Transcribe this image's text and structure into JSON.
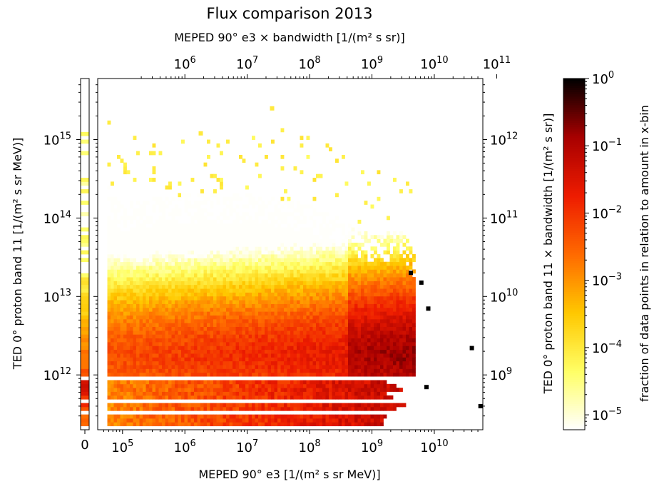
{
  "chart_data": {
    "type": "heatmap",
    "title": "Flux comparison 2013",
    "xlabel": "MEPED 90° e3   [1/(m² s sr MeV)]",
    "ylabel": "TED 0° proton band 11   [1/(m² s sr MeV)]",
    "x2label": "MEPED 90° e3 × bandwidth   [1/(m² s sr)]",
    "y2label": "TED 0° proton band 11 × bandwidth   [1/(m² s sr)]",
    "colorbar_label": "fraction of data points in relation to amount in x-bin",
    "x_scale": "log",
    "y_scale": "log",
    "xlim": [
      40000,
      60000000000
    ],
    "ylim": [
      200000000000,
      6000000000000000
    ],
    "x_ticks": [
      100000,
      1000000,
      10000000,
      100000000,
      1000000000,
      10000000000
    ],
    "x_tick_labels": [
      "10^5",
      "10^6",
      "10^7",
      "10^8",
      "10^9",
      "10^10"
    ],
    "y_ticks": [
      1000000000000,
      10000000000000,
      100000000000000,
      1000000000000000
    ],
    "y_tick_labels": [
      "10^12",
      "10^13",
      "10^14",
      "10^15"
    ],
    "x2_ticks": [
      1000000,
      10000000,
      100000000,
      1000000000,
      10000000000,
      100000000000
    ],
    "x2_tick_labels": [
      "10^6",
      "10^7",
      "10^8",
      "10^9",
      "10^10",
      "10^11"
    ],
    "y2_ticks": [
      1000000000,
      10000000000,
      100000000000,
      1000000000000
    ],
    "y2_tick_labels": [
      "10^9",
      "10^10",
      "10^11",
      "10^12"
    ],
    "zero_panel_label": "0",
    "colorbar": {
      "scale": "log",
      "range": [
        6e-06,
        1
      ],
      "ticks": [
        1,
        0.1,
        0.01,
        0.001,
        0.0001,
        1e-05
      ],
      "tick_labels": [
        "10^0",
        "10^-1",
        "10^-2",
        "10^-3",
        "10^-4",
        "10^-5"
      ],
      "colormap": [
        "#ffffff",
        "#ffff66",
        "#ffc800",
        "#ff6a00",
        "#ee1c00",
        "#a80000",
        "#000000"
      ]
    },
    "band_rows_y": [
      800000000000,
      700000000000,
      650000000000,
      600000000000,
      500000000000,
      420000000000,
      400000000000,
      360000000000,
      300000000000,
      250000000000
    ],
    "band_rows_x_end": [
      1800000000,
      2500000000,
      3000000000,
      1800000000,
      2200000000,
      2500000000,
      3500000000,
      2500000000,
      1800000000,
      1500000000
    ],
    "bulk_upper_edge": [
      {
        "x": 60000,
        "y": 250000000000000
      },
      {
        "x": 100000,
        "y": 150000000000000
      },
      {
        "x": 300000,
        "y": 180000000000000
      },
      {
        "x": 1000000,
        "y": 200000000000000
      },
      {
        "x": 10000000,
        "y": 200000000000000
      },
      {
        "x": 100000000,
        "y": 150000000000000
      },
      {
        "x": 1000000000,
        "y": 60000000000000
      },
      {
        "x": 3000000000,
        "y": 70000000000000
      },
      {
        "x": 5000000000,
        "y": 35000000000000
      }
    ],
    "outlier_points": [
      {
        "x": 4200000000,
        "y": 20000000000000,
        "v": 1
      },
      {
        "x": 6200000000,
        "y": 15000000000000,
        "v": 1
      },
      {
        "x": 8000000000,
        "y": 7000000000000,
        "v": 1
      },
      {
        "x": 40000000000,
        "y": 2200000000000,
        "v": 1
      },
      {
        "x": 7500000000,
        "y": 700000000000,
        "v": 1
      },
      {
        "x": 55000000000,
        "y": 400000000000,
        "v": 1
      },
      {
        "x": 25000000,
        "y": 2500000000000000,
        "v": 0.0001
      },
      {
        "x": 1800000,
        "y": 1200000000000000,
        "v": 0.0001
      }
    ]
  }
}
